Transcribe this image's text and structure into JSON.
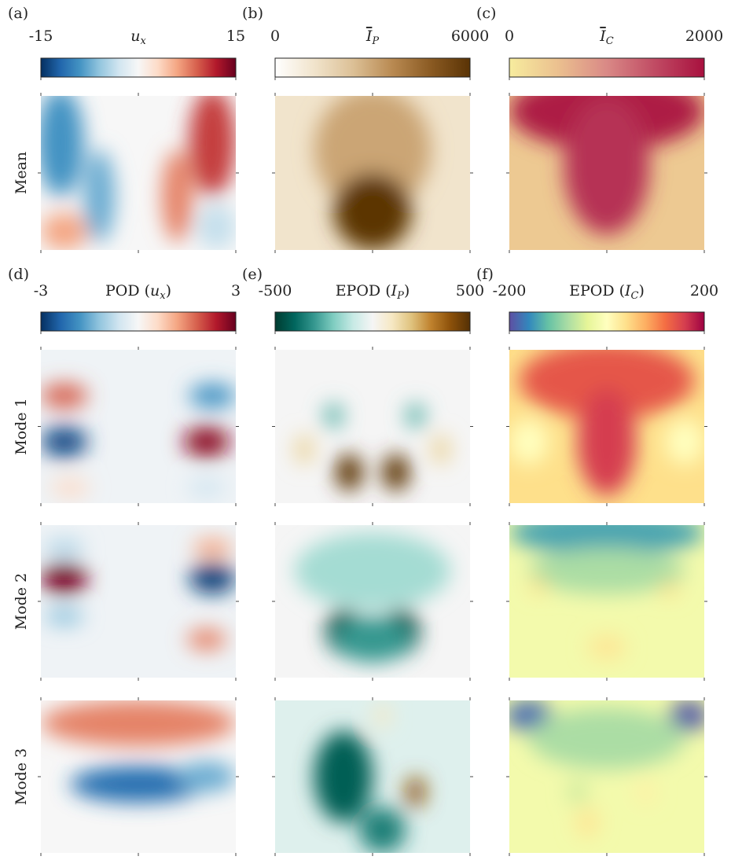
{
  "figure": {
    "rows": [
      "Mean",
      "Mode 1",
      "Mode 2",
      "Mode 3"
    ],
    "panels": [
      {
        "label": "(a)",
        "colorbar": {
          "symbol": "u",
          "subscript": "x",
          "overline": false,
          "min": -15,
          "max": 15,
          "colormap": [
            "#053061",
            "#2166ac",
            "#4393c3",
            "#92c5de",
            "#d1e5f0",
            "#f7f7f7",
            "#fddbc7",
            "#f4a582",
            "#d6604d",
            "#b2182b",
            "#67001f"
          ]
        }
      },
      {
        "label": "(b)",
        "colorbar": {
          "symbol": "I",
          "subscript": "P",
          "overline": true,
          "min": 0,
          "max": 6000,
          "colormap": [
            "#ffffff",
            "#f1e4cc",
            "#dcc096",
            "#b98a52",
            "#8a5a22",
            "#5a3305"
          ]
        }
      },
      {
        "label": "(c)",
        "colorbar": {
          "symbol": "I",
          "subscript": "C",
          "overline": true,
          "min": 0,
          "max": 2000,
          "colormap": [
            "#f7ec9e",
            "#ebc08f",
            "#d98986",
            "#c04a63",
            "#a8103e"
          ]
        }
      },
      {
        "label": "(d)",
        "colorbar": {
          "prefix": "POD (",
          "symbol": "u",
          "subscript": "x",
          "suffix": ")",
          "overline": false,
          "min": -3,
          "max": 3,
          "colormap": [
            "#053061",
            "#2166ac",
            "#4393c3",
            "#92c5de",
            "#d1e5f0",
            "#f7f7f7",
            "#fddbc7",
            "#f4a582",
            "#d6604d",
            "#b2182b",
            "#67001f"
          ]
        }
      },
      {
        "label": "(e)",
        "colorbar": {
          "prefix": "EPOD (",
          "symbol": "I",
          "subscript": "P",
          "suffix": ")",
          "overline": false,
          "min": -500,
          "max": 500,
          "colormap": [
            "#003c30",
            "#01665e",
            "#35978f",
            "#80cdc1",
            "#c7eae5",
            "#f5f5f5",
            "#f6e8c3",
            "#dfc27d",
            "#bf812d",
            "#8c510a",
            "#543005"
          ]
        }
      },
      {
        "label": "(f)",
        "colorbar": {
          "prefix": "EPOD (",
          "symbol": "I",
          "subscript": "C",
          "suffix": ")",
          "overline": false,
          "min": -200,
          "max": 200,
          "colormap": [
            "#5e4fa2",
            "#3288bd",
            "#66c2a5",
            "#abdda4",
            "#e6f598",
            "#ffffbf",
            "#fee08b",
            "#fdae61",
            "#f46d43",
            "#d53e4f",
            "#9e0142"
          ]
        }
      }
    ]
  }
}
